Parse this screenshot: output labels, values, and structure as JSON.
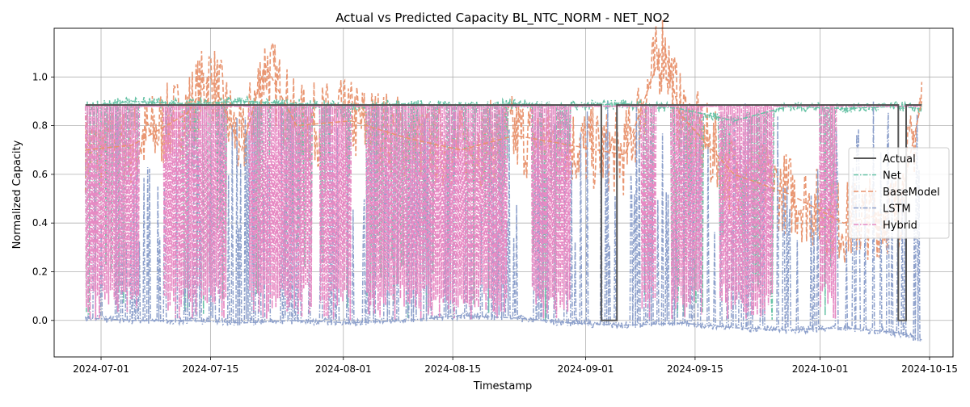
{
  "chart_data": {
    "type": "line",
    "title": "Actual vs Predicted Capacity BL_NTC_NORM - NET_NO2",
    "xlabel": "Timestamp",
    "ylabel": "Normalized Capacity",
    "xlim": [
      "2024-06-25T00:00",
      "2024-10-18T00:00"
    ],
    "ylim": [
      -0.15,
      1.2
    ],
    "x_ticks": [
      "2024-07-01",
      "2024-07-15",
      "2024-08-01",
      "2024-08-15",
      "2024-09-01",
      "2024-09-15",
      "2024-10-01",
      "2024-10-15"
    ],
    "y_ticks": [
      0.0,
      0.2,
      0.4,
      0.6,
      0.8,
      1.0
    ],
    "y_tick_labels": [
      "0.0",
      "0.2",
      "0.4",
      "0.6",
      "0.8",
      "1.0"
    ],
    "grid": true,
    "legend_position": "center-right",
    "series": [
      {
        "name": "Actual",
        "color": "#555555",
        "style": "solid",
        "x": [
          "2024-06-29",
          "2024-09-03",
          "2024-09-03",
          "2024-09-05",
          "2024-09-05",
          "2024-10-11",
          "2024-10-11",
          "2024-10-12",
          "2024-10-12",
          "2024-10-14"
        ],
        "y": [
          0.885,
          0.885,
          0.0,
          0.0,
          0.885,
          0.885,
          0.0,
          0.0,
          0.885,
          0.885
        ]
      },
      {
        "name": "Net",
        "color": "#66c2a5",
        "style": "dashdot",
        "x": [
          "2024-06-29",
          "2024-07-05",
          "2024-07-12",
          "2024-07-19",
          "2024-07-26",
          "2024-08-02",
          "2024-08-09",
          "2024-08-16",
          "2024-08-23",
          "2024-08-30",
          "2024-09-06",
          "2024-09-13",
          "2024-09-20",
          "2024-09-27",
          "2024-10-04",
          "2024-10-11",
          "2024-10-14"
        ],
        "y": [
          0.88,
          0.9,
          0.89,
          0.9,
          0.89,
          0.88,
          0.89,
          0.88,
          0.89,
          0.88,
          0.89,
          0.87,
          0.82,
          0.88,
          0.87,
          0.88,
          0.87
        ]
      },
      {
        "name": "BaseModel",
        "color": "#e8916b",
        "style": "dashed",
        "x": [
          "2024-06-29",
          "2024-07-05",
          "2024-07-12",
          "2024-07-15",
          "2024-07-19",
          "2024-07-22",
          "2024-07-26",
          "2024-08-02",
          "2024-08-09",
          "2024-08-16",
          "2024-08-23",
          "2024-08-30",
          "2024-09-06",
          "2024-09-11",
          "2024-09-13",
          "2024-09-20",
          "2024-09-27",
          "2024-10-04",
          "2024-10-11",
          "2024-10-14"
        ],
        "y": [
          0.7,
          0.72,
          0.85,
          1.0,
          0.7,
          1.05,
          0.8,
          0.82,
          0.75,
          0.7,
          0.76,
          0.72,
          0.68,
          1.13,
          0.85,
          0.6,
          0.52,
          0.4,
          0.45,
          0.9
        ]
      },
      {
        "name": "LSTM",
        "color": "#8da0cb",
        "style": "dashdot",
        "x": [
          "2024-06-29",
          "2024-07-05",
          "2024-07-12",
          "2024-07-19",
          "2024-07-26",
          "2024-08-02",
          "2024-08-09",
          "2024-08-16",
          "2024-08-23",
          "2024-08-30",
          "2024-09-06",
          "2024-09-13",
          "2024-09-20",
          "2024-09-27",
          "2024-10-04",
          "2024-10-11",
          "2024-10-14"
        ],
        "y": [
          0.01,
          0.0,
          0.0,
          -0.01,
          0.0,
          -0.01,
          0.0,
          0.02,
          0.01,
          -0.01,
          -0.02,
          -0.01,
          -0.03,
          -0.04,
          -0.03,
          -0.05,
          -0.08
        ]
      },
      {
        "name": "Hybrid",
        "color": "#e78ac3",
        "style": "dashdot",
        "x": [
          "2024-06-29",
          "2024-07-05",
          "2024-07-12",
          "2024-07-19",
          "2024-07-26",
          "2024-08-02",
          "2024-08-09",
          "2024-08-16",
          "2024-08-23",
          "2024-08-30",
          "2024-09-06",
          "2024-09-13",
          "2024-09-20",
          "2024-09-27",
          "2024-10-04",
          "2024-10-11",
          "2024-10-14"
        ],
        "y": [
          0.88,
          0.88,
          0.88,
          0.88,
          0.88,
          0.88,
          0.88,
          0.88,
          0.88,
          0.88,
          0.88,
          0.88,
          0.88,
          0.88,
          0.88,
          0.88,
          0.88
        ]
      }
    ]
  }
}
